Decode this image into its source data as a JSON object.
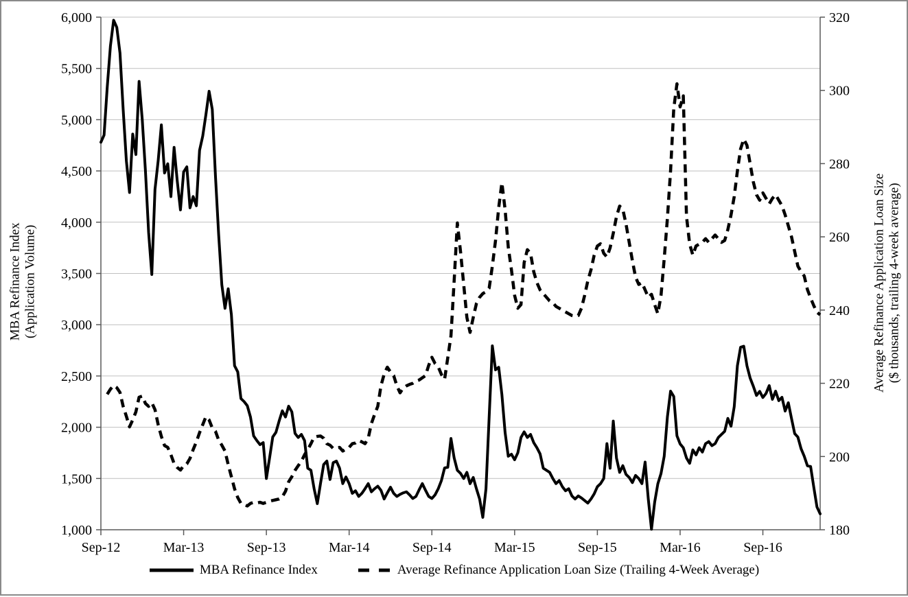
{
  "page": {
    "background": "#ffffff",
    "border_color": "#8a8a8a"
  },
  "chart_data": {
    "type": "line",
    "title": "",
    "grid": true,
    "legend_position": "bottom",
    "axis_color": "#595959",
    "grid_color": "#bfbfbf",
    "series_color": "#000000",
    "x_tick_labels": [
      "Sep-12",
      "Mar-13",
      "Sep-13",
      "Mar-14",
      "Sep-14",
      "Mar-15",
      "Sep-15",
      "Mar-16",
      "Sep-16"
    ],
    "x_tick_weeks": [
      0,
      26,
      52,
      78,
      104,
      130,
      156,
      182,
      208
    ],
    "x_domain": [
      0,
      226
    ],
    "x_unit": "weeks",
    "left_axis": {
      "title_line1": "MBA Refinance Index",
      "title_line2": "(Application Volume)",
      "min": 1000,
      "max": 6000,
      "step": 500
    },
    "right_axis": {
      "title_line1": "Average Refinance Application Loan Size",
      "title_line2": "($ thousands, trailing 4-week average)",
      "min": 180,
      "max": 320,
      "step": 20
    },
    "series": [
      {
        "name": "MBA Refinance Index",
        "axis": "left",
        "style": "solid",
        "color": "#000000",
        "values": [
          4780,
          4850,
          5320,
          5720,
          5970,
          5900,
          5650,
          5100,
          4600,
          4290,
          4860,
          4660,
          5373,
          5000,
          4500,
          3900,
          3490,
          4320,
          4600,
          4949,
          4480,
          4570,
          4250,
          4730,
          4400,
          4120,
          4490,
          4540,
          4140,
          4250,
          4160,
          4700,
          4840,
          5050,
          5277,
          5100,
          4450,
          3880,
          3390,
          3160,
          3350,
          3100,
          2600,
          2540,
          2280,
          2250,
          2210,
          2100,
          1915,
          1870,
          1830,
          1850,
          1500,
          1700,
          1905,
          1950,
          2060,
          2160,
          2100,
          2205,
          2150,
          1940,
          1900,
          1930,
          1870,
          1600,
          1580,
          1400,
          1255,
          1450,
          1636,
          1670,
          1490,
          1655,
          1670,
          1600,
          1450,
          1515,
          1450,
          1355,
          1380,
          1325,
          1355,
          1400,
          1450,
          1370,
          1400,
          1425,
          1385,
          1300,
          1360,
          1415,
          1355,
          1325,
          1345,
          1360,
          1370,
          1340,
          1305,
          1325,
          1390,
          1450,
          1385,
          1325,
          1305,
          1340,
          1400,
          1480,
          1603,
          1610,
          1890,
          1700,
          1580,
          1550,
          1500,
          1560,
          1450,
          1510,
          1400,
          1300,
          1121,
          1400,
          2100,
          2794,
          2560,
          2585,
          2319,
          1950,
          1717,
          1737,
          1683,
          1750,
          1900,
          1955,
          1900,
          1930,
          1850,
          1800,
          1740,
          1600,
          1580,
          1560,
          1500,
          1450,
          1480,
          1420,
          1380,
          1400,
          1330,
          1300,
          1330,
          1310,
          1285,
          1260,
          1300,
          1350,
          1420,
          1450,
          1500,
          1840,
          1600,
          2060,
          1700,
          1560,
          1625,
          1540,
          1510,
          1460,
          1530,
          1500,
          1450,
          1660,
          1300,
          1005,
          1268,
          1448,
          1549,
          1717,
          2100,
          2352,
          2300,
          1917,
          1837,
          1800,
          1700,
          1648,
          1779,
          1730,
          1800,
          1758,
          1840,
          1860,
          1820,
          1840,
          1900,
          1930,
          1960,
          2086,
          2010,
          2200,
          2600,
          2780,
          2790,
          2600,
          2480,
          2400,
          2310,
          2350,
          2290,
          2330,
          2406,
          2272,
          2352,
          2259,
          2292,
          2158,
          2239,
          2085,
          1938,
          1904,
          1791,
          1717,
          1624,
          1617,
          1415,
          1222,
          1155
        ]
      },
      {
        "name": "Average Refinance Application Loan Size (Trailing 4-Week Average)",
        "axis": "right",
        "style": "dashed",
        "color": "#000000",
        "values": [
          null,
          null,
          217,
          218.4,
          219.4,
          218.8,
          217.5,
          213.7,
          211,
          208.1,
          210,
          212.2,
          216.2,
          216.5,
          214.5,
          213.7,
          214.7,
          212.8,
          208.7,
          205.5,
          203,
          202.5,
          200.5,
          198.1,
          197,
          196.3,
          197.5,
          198,
          199.5,
          201.9,
          204,
          206.5,
          208.7,
          210.9,
          210,
          207.8,
          206.9,
          204.5,
          203.1,
          201.5,
          197.8,
          194.5,
          191.2,
          188.8,
          187.2,
          186.9,
          186.5,
          187.2,
          187.5,
          187.3,
          187.5,
          187.2,
          187.5,
          187.8,
          188,
          188.2,
          188.4,
          189,
          190.5,
          193.1,
          194.5,
          196.2,
          197.5,
          198.7,
          200.5,
          201.9,
          203.5,
          205.3,
          205.5,
          205.6,
          205,
          203.5,
          203.1,
          202.2,
          202.4,
          202.5,
          201.5,
          202,
          202.5,
          203.5,
          203.7,
          204.4,
          204,
          203.5,
          205,
          209,
          211.5,
          213.7,
          219.3,
          222.5,
          224.4,
          223.1,
          222.1,
          219.3,
          217.4,
          218.7,
          219.3,
          219.7,
          220,
          220.6,
          220.9,
          221.5,
          222.1,
          224.9,
          227.1,
          225.4,
          224.5,
          222.4,
          221.1,
          227,
          233,
          248,
          263.8,
          256,
          247,
          238,
          233.9,
          238,
          241.8,
          243.5,
          244.5,
          245,
          246,
          252,
          259,
          268,
          274.8,
          267.5,
          257.2,
          251,
          244,
          240.5,
          241.5,
          253,
          256.5,
          255.5,
          250.5,
          247.5,
          245.5,
          244.5,
          243.5,
          242.5,
          242,
          241,
          240.5,
          240,
          239.5,
          239,
          238.5,
          238.3,
          238.5,
          240.5,
          244,
          248,
          251,
          255,
          257.5,
          258.1,
          255.5,
          254.5,
          257,
          261,
          265.5,
          268.4,
          267.5,
          263.5,
          258.5,
          253.5,
          249,
          247,
          247.5,
          245.5,
          243.5,
          244.3,
          241.5,
          239,
          244,
          254,
          265,
          278,
          295,
          301.8,
          295.5,
          298.5,
          265.6,
          258,
          255,
          257.5,
          258,
          258.5,
          259.5,
          258.5,
          259.5,
          260.5,
          259.5,
          258.5,
          259,
          262,
          266,
          271,
          278,
          284,
          286.7,
          285,
          280,
          275,
          271.5,
          270,
          272,
          270.5,
          269,
          270.5,
          271.5,
          270,
          268.5,
          266,
          263,
          260,
          256,
          252,
          250.5,
          249.3,
          245.6,
          243.3,
          241.2,
          239.4,
          238.7
        ]
      }
    ],
    "legend": [
      "MBA Refinance Index",
      "Average Refinance Application Loan Size (Trailing 4-Week Average)"
    ]
  }
}
